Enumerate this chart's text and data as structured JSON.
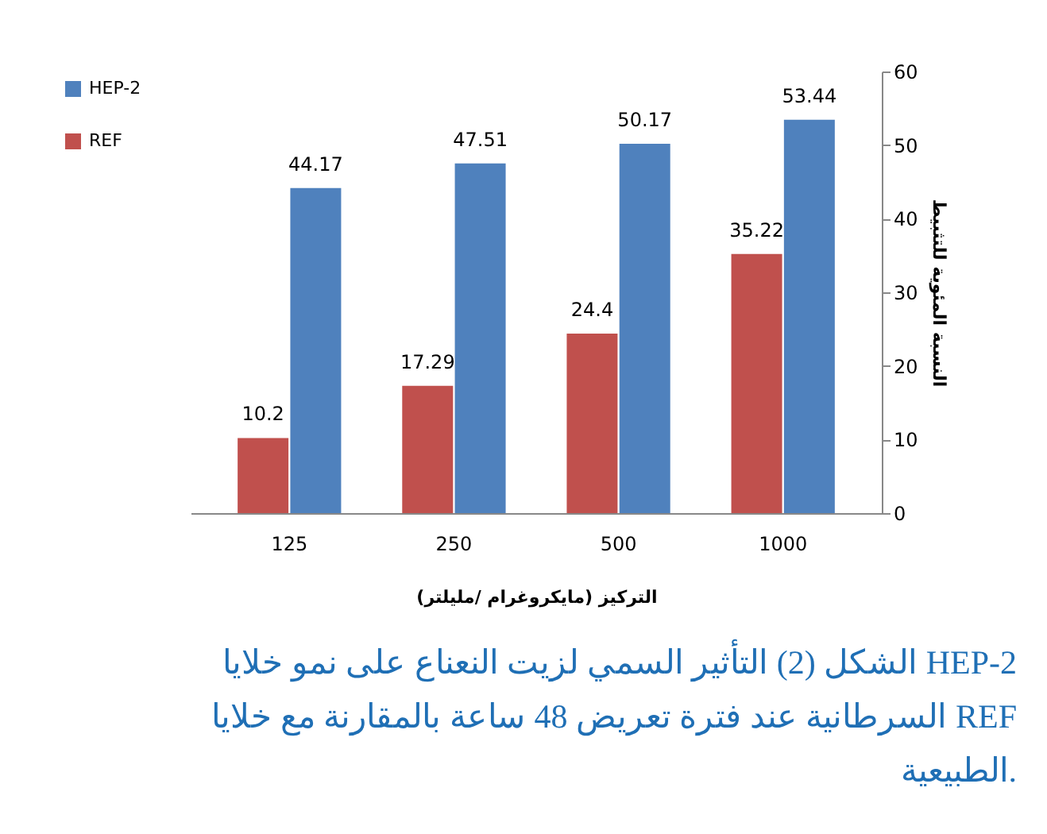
{
  "chart_data": {
    "type": "bar",
    "xlabel": "التركيز (مايكروغرام /مليلتر)",
    "ylabel": "النسبة المئوية للتثبيط",
    "categories": [
      "125",
      "250",
      "500",
      "1000"
    ],
    "series": [
      {
        "name": "REF",
        "color": "#c0504d",
        "values": [
          10.2,
          17.29,
          24.4,
          35.22
        ]
      },
      {
        "name": "HEP-2",
        "color": "#4f81bd",
        "values": [
          44.17,
          47.51,
          50.17,
          53.44
        ]
      }
    ],
    "ylim": [
      0,
      60
    ],
    "yticks": [
      0,
      10,
      20,
      30,
      40,
      50,
      60
    ],
    "grid": false,
    "legend": "left",
    "data_labels": true,
    "annotations": [
      "الشكل (2) التأثير السمي لزيت النعناع على نمو خلايا HEP-2",
      "السرطانية عند فترة تعريض 48 ساعة بالمقارنة مع خلايا REF",
      "الطبيعية."
    ]
  }
}
